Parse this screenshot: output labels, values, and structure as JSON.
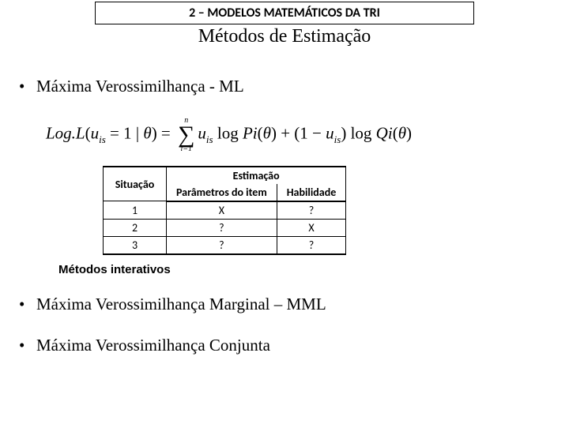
{
  "header": {
    "title": "2 – MODELOS MATEMÁTICOS DA TRI"
  },
  "subtitle": "Métodos de Estimação",
  "bullets1": [
    {
      "label": "Máxima Verossimilhança - ML"
    }
  ],
  "formula": {
    "lhs_a": "Log.L",
    "lhs_b": "u",
    "lhs_sub": "is",
    "lhs_eq": " = 1 | ",
    "theta": "θ",
    "rhs_u": "u",
    "rhs_sub": "is",
    "log": " log ",
    "P": "P",
    "i": "i",
    "plus": " + ",
    "open": "(1 − ",
    "close": ")",
    "Q": "Q",
    "sigma_top": "n",
    "sigma_bot": "i=1"
  },
  "table": {
    "col_situ": "Situação",
    "col_group": "Estimação",
    "col_param": "Parâmetros do item",
    "col_habil": "Habilidade",
    "rows": [
      {
        "s": "1",
        "p": "X",
        "h": "?"
      },
      {
        "s": "2",
        "p": "?",
        "h": "X"
      },
      {
        "s": "3",
        "p": "?",
        "h": "?"
      }
    ]
  },
  "sub_heading": "Métodos interativos",
  "bullets2": [
    {
      "label": "Máxima Verossimilhança Marginal – MML"
    },
    {
      "label": "Máxima Verossimilhança Conjunta"
    }
  ]
}
